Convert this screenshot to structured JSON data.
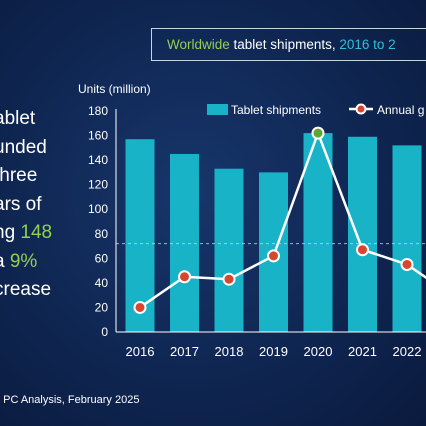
{
  "title": {
    "part1": "Worldwide",
    "part2": " tablet shipments, ",
    "part3": "2016 to 2"
  },
  "side_text": {
    "l1": "ablet",
    "l2": "unded",
    "l3": "three",
    "l4": "ars of",
    "l5_a": "ng ",
    "l5_b": "148",
    "l6_a": "a ",
    "l6_b": "9%",
    "l7": "crease"
  },
  "source": ", PC Analysis, February 2025",
  "colors": {
    "bar": "#19b3c7",
    "line": "#ffffff",
    "marker": "#d9462f",
    "marker_highlight": "#5aa832",
    "highlight_text": "#92d050",
    "title_accent": "#2fc0d6"
  },
  "chart_data": {
    "type": "bar",
    "ylabel": "Units (million)",
    "ylim": [
      0,
      180
    ],
    "yticks": [
      0,
      20,
      40,
      60,
      80,
      100,
      120,
      140,
      160,
      180
    ],
    "categories": [
      "2016",
      "2017",
      "2018",
      "2019",
      "2020",
      "2021",
      "2022"
    ],
    "grid": false,
    "legend": "top-right",
    "reference_line": 72,
    "series": [
      {
        "name": "Tablet shipments",
        "type": "bar",
        "values": [
          157,
          145,
          133,
          130,
          162,
          159,
          152
        ]
      },
      {
        "name": "Annual g",
        "type": "line",
        "values": [
          20,
          45,
          43,
          62,
          162,
          67,
          55
        ],
        "highlight_index": 4
      }
    ]
  }
}
